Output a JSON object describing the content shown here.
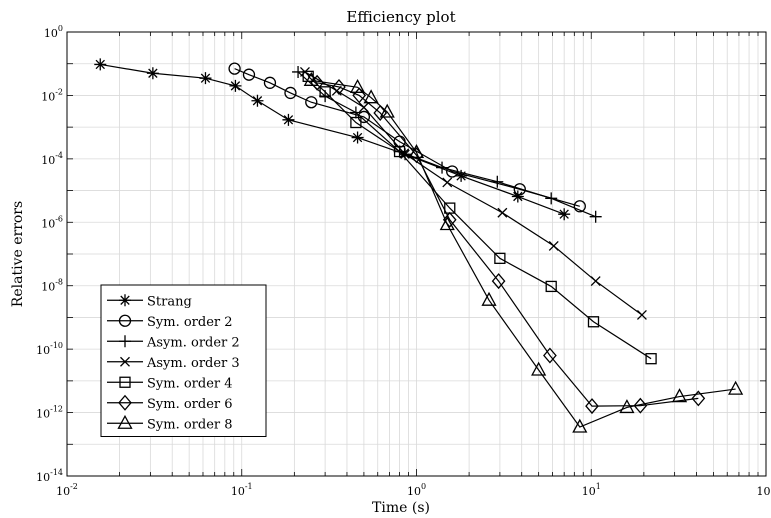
{
  "chart_data": {
    "type": "line",
    "title": "Efficiency plot",
    "xlabel": "Time (s)",
    "ylabel": "Relative errors",
    "x_scale": "log",
    "y_scale": "log",
    "xlim": [
      0.01,
      100
    ],
    "ylim": [
      1e-14,
      1
    ],
    "grid": true,
    "legend_position": "lower-left",
    "x_ticks": [
      {
        "value": 0.01,
        "base": "10",
        "exp": "-2"
      },
      {
        "value": 0.1,
        "base": "10",
        "exp": "-1"
      },
      {
        "value": 1,
        "base": "10",
        "exp": "0"
      },
      {
        "value": 10,
        "base": "10",
        "exp": "1"
      },
      {
        "value": 100,
        "base": "10",
        "exp": "2"
      }
    ],
    "y_ticks": [
      {
        "value": 1,
        "base": "10",
        "exp": "0"
      },
      {
        "value": 0.01,
        "base": "10",
        "exp": "-2"
      },
      {
        "value": 0.0001,
        "base": "10",
        "exp": "-4"
      },
      {
        "value": 1e-06,
        "base": "10",
        "exp": "-6"
      },
      {
        "value": 1e-08,
        "base": "10",
        "exp": "-8"
      },
      {
        "value": 1e-10,
        "base": "10",
        "exp": "-10"
      },
      {
        "value": 1e-12,
        "base": "10",
        "exp": "-12"
      },
      {
        "value": 1e-14,
        "base": "10",
        "exp": "-14"
      }
    ],
    "series": [
      {
        "name": "Strang",
        "marker": "asterisk",
        "x": [
          0.0155,
          0.031,
          0.062,
          0.092,
          0.123,
          0.185,
          0.46,
          0.86,
          1.8,
          3.8,
          7.0
        ],
        "y": [
          0.095,
          0.05,
          0.035,
          0.02,
          0.0068,
          0.0017,
          0.00047,
          0.00014,
          2.9e-05,
          6.5e-06,
          1.8e-06
        ]
      },
      {
        "name": "Sym. order 2",
        "marker": "circle",
        "x": [
          0.091,
          0.11,
          0.145,
          0.19,
          0.25,
          0.5,
          0.8,
          1.6,
          3.9,
          8.6
        ],
        "y": [
          0.07,
          0.045,
          0.025,
          0.012,
          0.0061,
          0.0021,
          0.00035,
          4e-05,
          1.1e-05,
          3.2e-06
        ]
      },
      {
        "name": "Asym. order 2",
        "marker": "plus",
        "x": [
          0.21,
          0.3,
          0.45,
          0.8,
          1.4,
          2.9,
          5.9,
          10.6
        ],
        "y": [
          0.055,
          0.0095,
          0.0029,
          0.00017,
          5.3e-05,
          1.9e-05,
          5.7e-06,
          1.5e-06
        ]
      },
      {
        "name": "Asym. order 3",
        "marker": "cross",
        "x": [
          0.23,
          0.35,
          0.5,
          0.85,
          1.5,
          3.1,
          6.1,
          10.6,
          19.5
        ],
        "y": [
          0.055,
          0.014,
          0.0042,
          0.00015,
          1.8e-05,
          2e-06,
          1.8e-07,
          1.4e-08,
          1.2e-09
        ]
      },
      {
        "name": "Sym. order 4",
        "marker": "square",
        "x": [
          0.24,
          0.3,
          0.45,
          0.8,
          1.55,
          3.0,
          5.9,
          10.3,
          22.0
        ],
        "y": [
          0.04,
          0.013,
          0.0014,
          0.00017,
          2.8e-06,
          7.3e-08,
          9.5e-09,
          7.3e-10,
          5e-11
        ]
      },
      {
        "name": "Sym. order 6",
        "marker": "diamond",
        "x": [
          0.27,
          0.36,
          0.47,
          0.62,
          1.0,
          1.55,
          2.95,
          5.8,
          10.1,
          19.1,
          41.0
        ],
        "y": [
          0.025,
          0.0185,
          0.01,
          0.0028,
          0.00013,
          1.2e-06,
          1.4e-08,
          6.3e-11,
          1.6e-12,
          1.65e-12,
          2.8e-12
        ]
      },
      {
        "name": "Sym. order 8",
        "marker": "triangle",
        "x": [
          0.25,
          0.46,
          0.55,
          0.68,
          1.0,
          1.5,
          2.6,
          5.0,
          8.6,
          16.0,
          32.0,
          67.0
        ],
        "y": [
          0.03,
          0.018,
          0.0085,
          0.003,
          0.00016,
          8.5e-07,
          3.5e-09,
          2.2e-11,
          3.5e-13,
          1.45e-12,
          3.2e-12,
          5.5e-12
        ]
      }
    ]
  }
}
